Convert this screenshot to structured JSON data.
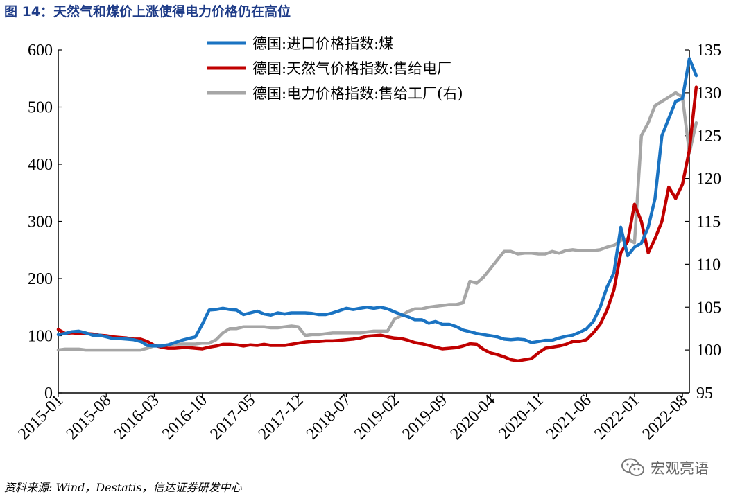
{
  "title": "图 14：天然气和煤价上涨使得电力价格仍在高位",
  "source": "资料来源: Wind，Destatis，信达证券研发中心",
  "watermark": "宏观亮语",
  "chart_data": {
    "type": "line",
    "x_ticks": [
      "2015-01",
      "2015-08",
      "2016-03",
      "2016-10",
      "2017-05",
      "2017-12",
      "2018-07",
      "2019-02",
      "2019-09",
      "2020-04",
      "2020-11",
      "2021-06",
      "2022-01",
      "2022-08"
    ],
    "x_range": [
      "2015-01",
      "2022-09"
    ],
    "left_axis": {
      "ylim": [
        0,
        600
      ],
      "ticks": [
        0,
        100,
        200,
        300,
        400,
        500,
        600
      ]
    },
    "right_axis": {
      "ylim": [
        95,
        135
      ],
      "ticks": [
        95,
        100,
        105,
        110,
        115,
        120,
        125,
        130,
        135
      ]
    },
    "legend_position": "top",
    "series": [
      {
        "name": "德国:进口价格指数:煤",
        "axis": "left",
        "color": "#1a73c2",
        "points": [
          [
            "2015-01",
            102
          ],
          [
            "2015-02",
            104
          ],
          [
            "2015-03",
            107
          ],
          [
            "2015-04",
            108
          ],
          [
            "2015-05",
            105
          ],
          [
            "2015-06",
            101
          ],
          [
            "2015-07",
            101
          ],
          [
            "2015-08",
            98
          ],
          [
            "2015-09",
            95
          ],
          [
            "2015-10",
            95
          ],
          [
            "2015-11",
            94
          ],
          [
            "2015-12",
            93
          ],
          [
            "2016-01",
            90
          ],
          [
            "2016-02",
            83
          ],
          [
            "2016-03",
            82
          ],
          [
            "2016-04",
            82
          ],
          [
            "2016-05",
            84
          ],
          [
            "2016-06",
            88
          ],
          [
            "2016-07",
            92
          ],
          [
            "2016-08",
            95
          ],
          [
            "2016-09",
            98
          ],
          [
            "2016-10",
            120
          ],
          [
            "2016-11",
            145
          ],
          [
            "2016-12",
            146
          ],
          [
            "2017-01",
            148
          ],
          [
            "2017-02",
            146
          ],
          [
            "2017-03",
            145
          ],
          [
            "2017-04",
            137
          ],
          [
            "2017-05",
            140
          ],
          [
            "2017-06",
            143
          ],
          [
            "2017-07",
            138
          ],
          [
            "2017-08",
            136
          ],
          [
            "2017-09",
            140
          ],
          [
            "2017-10",
            138
          ],
          [
            "2017-11",
            140
          ],
          [
            "2017-12",
            140
          ],
          [
            "2018-01",
            140
          ],
          [
            "2018-02",
            139
          ],
          [
            "2018-03",
            137
          ],
          [
            "2018-04",
            137
          ],
          [
            "2018-05",
            140
          ],
          [
            "2018-06",
            144
          ],
          [
            "2018-07",
            148
          ],
          [
            "2018-08",
            146
          ],
          [
            "2018-09",
            148
          ],
          [
            "2018-10",
            150
          ],
          [
            "2018-11",
            148
          ],
          [
            "2018-12",
            150
          ],
          [
            "2019-01",
            147
          ],
          [
            "2019-02",
            142
          ],
          [
            "2019-03",
            137
          ],
          [
            "2019-04",
            133
          ],
          [
            "2019-05",
            128
          ],
          [
            "2019-06",
            128
          ],
          [
            "2019-07",
            122
          ],
          [
            "2019-08",
            125
          ],
          [
            "2019-09",
            120
          ],
          [
            "2019-10",
            120
          ],
          [
            "2019-11",
            116
          ],
          [
            "2019-12",
            110
          ],
          [
            "2020-01",
            107
          ],
          [
            "2020-02",
            104
          ],
          [
            "2020-03",
            102
          ],
          [
            "2020-04",
            100
          ],
          [
            "2020-05",
            98
          ],
          [
            "2020-06",
            94
          ],
          [
            "2020-07",
            93
          ],
          [
            "2020-08",
            94
          ],
          [
            "2020-09",
            93
          ],
          [
            "2020-10",
            88
          ],
          [
            "2020-11",
            90
          ],
          [
            "2020-12",
            92
          ],
          [
            "2021-01",
            92
          ],
          [
            "2021-02",
            96
          ],
          [
            "2021-03",
            99
          ],
          [
            "2021-04",
            101
          ],
          [
            "2021-05",
            106
          ],
          [
            "2021-06",
            112
          ],
          [
            "2021-07",
            125
          ],
          [
            "2021-08",
            150
          ],
          [
            "2021-09",
            185
          ],
          [
            "2021-10",
            210
          ],
          [
            "2021-11",
            290
          ],
          [
            "2021-12",
            240
          ],
          [
            "2022-01",
            255
          ],
          [
            "2022-02",
            262
          ],
          [
            "2022-03",
            290
          ],
          [
            "2022-04",
            340
          ],
          [
            "2022-05",
            450
          ],
          [
            "2022-06",
            480
          ],
          [
            "2022-07",
            510
          ],
          [
            "2022-08",
            515
          ],
          [
            "2022-09",
            585
          ],
          [
            "2022-10",
            555
          ]
        ]
      },
      {
        "name": "德国:天然气价格指数:售给电厂",
        "axis": "left",
        "color": "#c00000",
        "points": [
          [
            "2015-01",
            111
          ],
          [
            "2015-02",
            104
          ],
          [
            "2015-03",
            105
          ],
          [
            "2015-04",
            104
          ],
          [
            "2015-05",
            104
          ],
          [
            "2015-06",
            103
          ],
          [
            "2015-07",
            101
          ],
          [
            "2015-08",
            100
          ],
          [
            "2015-09",
            98
          ],
          [
            "2015-10",
            97
          ],
          [
            "2015-11",
            96
          ],
          [
            "2015-12",
            94
          ],
          [
            "2016-01",
            94
          ],
          [
            "2016-02",
            90
          ],
          [
            "2016-03",
            83
          ],
          [
            "2016-04",
            80
          ],
          [
            "2016-05",
            78
          ],
          [
            "2016-06",
            78
          ],
          [
            "2016-07",
            79
          ],
          [
            "2016-08",
            79
          ],
          [
            "2016-09",
            78
          ],
          [
            "2016-10",
            77
          ],
          [
            "2016-11",
            80
          ],
          [
            "2016-12",
            82
          ],
          [
            "2017-01",
            85
          ],
          [
            "2017-02",
            85
          ],
          [
            "2017-03",
            84
          ],
          [
            "2017-04",
            82
          ],
          [
            "2017-05",
            84
          ],
          [
            "2017-06",
            83
          ],
          [
            "2017-07",
            85
          ],
          [
            "2017-08",
            83
          ],
          [
            "2017-09",
            83
          ],
          [
            "2017-10",
            83
          ],
          [
            "2017-11",
            85
          ],
          [
            "2017-12",
            87
          ],
          [
            "2018-01",
            89
          ],
          [
            "2018-02",
            90
          ],
          [
            "2018-03",
            90
          ],
          [
            "2018-04",
            91
          ],
          [
            "2018-05",
            91
          ],
          [
            "2018-06",
            92
          ],
          [
            "2018-07",
            93
          ],
          [
            "2018-08",
            94
          ],
          [
            "2018-09",
            96
          ],
          [
            "2018-10",
            99
          ],
          [
            "2018-11",
            100
          ],
          [
            "2018-12",
            101
          ],
          [
            "2019-01",
            98
          ],
          [
            "2019-02",
            96
          ],
          [
            "2019-03",
            95
          ],
          [
            "2019-04",
            92
          ],
          [
            "2019-05",
            88
          ],
          [
            "2019-06",
            86
          ],
          [
            "2019-07",
            83
          ],
          [
            "2019-08",
            80
          ],
          [
            "2019-09",
            77
          ],
          [
            "2019-10",
            78
          ],
          [
            "2019-11",
            79
          ],
          [
            "2019-12",
            82
          ],
          [
            "2020-01",
            86
          ],
          [
            "2020-02",
            85
          ],
          [
            "2020-03",
            76
          ],
          [
            "2020-04",
            70
          ],
          [
            "2020-05",
            67
          ],
          [
            "2020-06",
            63
          ],
          [
            "2020-07",
            58
          ],
          [
            "2020-08",
            56
          ],
          [
            "2020-09",
            58
          ],
          [
            "2020-10",
            60
          ],
          [
            "2020-11",
            70
          ],
          [
            "2020-12",
            78
          ],
          [
            "2021-01",
            80
          ],
          [
            "2021-02",
            82
          ],
          [
            "2021-03",
            85
          ],
          [
            "2021-04",
            90
          ],
          [
            "2021-05",
            90
          ],
          [
            "2021-06",
            93
          ],
          [
            "2021-07",
            105
          ],
          [
            "2021-08",
            120
          ],
          [
            "2021-09",
            145
          ],
          [
            "2021-10",
            180
          ],
          [
            "2021-11",
            245
          ],
          [
            "2021-12",
            265
          ],
          [
            "2022-01",
            330
          ],
          [
            "2022-02",
            300
          ],
          [
            "2022-03",
            245
          ],
          [
            "2022-04",
            270
          ],
          [
            "2022-05",
            300
          ],
          [
            "2022-06",
            360
          ],
          [
            "2022-07",
            340
          ],
          [
            "2022-08",
            365
          ],
          [
            "2022-09",
            425
          ],
          [
            "2022-10",
            535
          ]
        ]
      },
      {
        "name": "德国:电力价格指数:售给工厂(右)",
        "axis": "right",
        "color": "#a6a6a6",
        "points": [
          [
            "2015-01",
            100.0
          ],
          [
            "2015-02",
            100.1
          ],
          [
            "2015-03",
            100.1
          ],
          [
            "2015-04",
            100.1
          ],
          [
            "2015-05",
            100.0
          ],
          [
            "2015-06",
            100.0
          ],
          [
            "2015-07",
            100.0
          ],
          [
            "2015-08",
            100.0
          ],
          [
            "2015-09",
            100.0
          ],
          [
            "2015-10",
            100.0
          ],
          [
            "2015-11",
            100.0
          ],
          [
            "2015-12",
            100.0
          ],
          [
            "2016-01",
            100.0
          ],
          [
            "2016-02",
            100.2
          ],
          [
            "2016-03",
            100.5
          ],
          [
            "2016-04",
            100.5
          ],
          [
            "2016-05",
            100.6
          ],
          [
            "2016-06",
            100.7
          ],
          [
            "2016-07",
            100.7
          ],
          [
            "2016-08",
            100.7
          ],
          [
            "2016-09",
            100.7
          ],
          [
            "2016-10",
            100.8
          ],
          [
            "2016-11",
            100.8
          ],
          [
            "2016-12",
            101.2
          ],
          [
            "2017-01",
            102.0
          ],
          [
            "2017-02",
            102.5
          ],
          [
            "2017-03",
            102.5
          ],
          [
            "2017-04",
            102.7
          ],
          [
            "2017-05",
            102.7
          ],
          [
            "2017-06",
            102.7
          ],
          [
            "2017-07",
            102.7
          ],
          [
            "2017-08",
            102.6
          ],
          [
            "2017-09",
            102.6
          ],
          [
            "2017-10",
            102.7
          ],
          [
            "2017-11",
            102.8
          ],
          [
            "2017-12",
            102.7
          ],
          [
            "2018-01",
            101.7
          ],
          [
            "2018-02",
            101.8
          ],
          [
            "2018-03",
            101.8
          ],
          [
            "2018-04",
            101.9
          ],
          [
            "2018-05",
            102.0
          ],
          [
            "2018-06",
            102.0
          ],
          [
            "2018-07",
            102.0
          ],
          [
            "2018-08",
            102.0
          ],
          [
            "2018-09",
            102.0
          ],
          [
            "2018-10",
            102.1
          ],
          [
            "2018-11",
            102.2
          ],
          [
            "2018-12",
            102.2
          ],
          [
            "2019-01",
            102.2
          ],
          [
            "2019-02",
            103.6
          ],
          [
            "2019-03",
            104.0
          ],
          [
            "2019-04",
            104.5
          ],
          [
            "2019-05",
            104.8
          ],
          [
            "2019-06",
            104.8
          ],
          [
            "2019-07",
            105.0
          ],
          [
            "2019-08",
            105.1
          ],
          [
            "2019-09",
            105.2
          ],
          [
            "2019-10",
            105.3
          ],
          [
            "2019-11",
            105.3
          ],
          [
            "2019-12",
            105.5
          ],
          [
            "2020-01",
            108.0
          ],
          [
            "2020-02",
            107.8
          ],
          [
            "2020-03",
            108.5
          ],
          [
            "2020-04",
            109.5
          ],
          [
            "2020-05",
            110.5
          ],
          [
            "2020-06",
            111.5
          ],
          [
            "2020-07",
            111.5
          ],
          [
            "2020-08",
            111.2
          ],
          [
            "2020-09",
            111.3
          ],
          [
            "2020-10",
            111.3
          ],
          [
            "2020-11",
            111.2
          ],
          [
            "2020-12",
            111.2
          ],
          [
            "2021-01",
            111.5
          ],
          [
            "2021-02",
            111.3
          ],
          [
            "2021-03",
            111.6
          ],
          [
            "2021-04",
            111.7
          ],
          [
            "2021-05",
            111.6
          ],
          [
            "2021-06",
            111.6
          ],
          [
            "2021-07",
            111.6
          ],
          [
            "2021-08",
            111.7
          ],
          [
            "2021-09",
            112.0
          ],
          [
            "2021-10",
            112.2
          ],
          [
            "2021-11",
            112.8
          ],
          [
            "2021-12",
            113.0
          ],
          [
            "2022-01",
            112.5
          ],
          [
            "2022-02",
            125.0
          ],
          [
            "2022-03",
            126.5
          ],
          [
            "2022-04",
            128.5
          ],
          [
            "2022-05",
            129.0
          ],
          [
            "2022-06",
            129.5
          ],
          [
            "2022-07",
            130.0
          ],
          [
            "2022-08",
            129.5
          ],
          [
            "2022-09",
            123.0
          ],
          [
            "2022-10",
            126.5
          ]
        ]
      }
    ]
  }
}
